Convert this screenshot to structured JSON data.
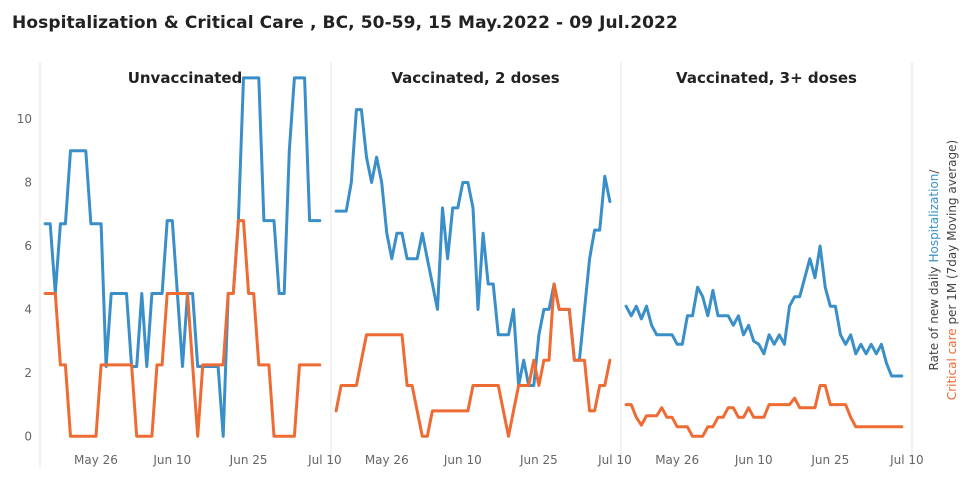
{
  "title": "Hospitalization & Critical Care , BC, 50-59, 15 May.2022 - 09 Jul.2022",
  "y_axis_label": {
    "line1_prefix": "Rate of new daily ",
    "line1_colored": "Hospitalization",
    "line1_suffix": "/",
    "line2_colored": "Critical care",
    "line2_suffix": " per 1M (7day Moving average)"
  },
  "colors": {
    "hospitalization": "#3a8fc9",
    "critical_care": "#ee6b33"
  },
  "chart_data": {
    "type": "line",
    "ylim": [
      -1,
      11.8
    ],
    "yticks": [
      0,
      2,
      4,
      6,
      8,
      10
    ],
    "xlim": [
      0,
      57
    ],
    "xtick_positions": [
      11,
      26,
      41,
      56
    ],
    "xtick_labels": [
      "May 26",
      "Jun 10",
      "Jun 25",
      "Jul 10"
    ],
    "grid": false,
    "panels": [
      {
        "title": "Unvaccinated",
        "series": [
          {
            "name": "Hospitalization",
            "x": [
              1,
              2,
              3,
              4,
              5,
              6,
              7,
              8,
              9,
              10,
              11,
              12,
              13,
              14,
              15,
              16,
              17,
              18,
              19,
              20,
              21,
              22,
              23,
              24,
              25,
              26,
              27,
              28,
              29,
              30,
              31,
              32,
              33,
              34,
              35,
              36,
              37,
              38,
              39,
              40,
              41,
              42,
              43,
              44,
              45,
              46,
              47,
              48,
              49,
              50,
              51,
              52,
              53,
              54,
              55
            ],
            "y": [
              6.7,
              6.7,
              4.5,
              6.7,
              6.7,
              9.0,
              9.0,
              9.0,
              9.0,
              6.7,
              6.7,
              6.7,
              2.2,
              4.5,
              4.5,
              4.5,
              4.5,
              2.2,
              2.2,
              4.5,
              2.2,
              4.5,
              4.5,
              4.5,
              6.8,
              6.8,
              4.5,
              2.2,
              4.5,
              4.5,
              2.2,
              2.2,
              2.2,
              2.2,
              2.2,
              0.0,
              4.5,
              4.5,
              6.8,
              11.3,
              11.3,
              11.3,
              11.3,
              6.8,
              6.8,
              6.8,
              4.5,
              4.5,
              9.0,
              11.3,
              11.3,
              11.3,
              6.8,
              6.8,
              6.8
            ]
          },
          {
            "name": "Critical care",
            "x": [
              1,
              2,
              3,
              4,
              5,
              6,
              7,
              8,
              9,
              10,
              11,
              12,
              13,
              14,
              15,
              16,
              17,
              18,
              19,
              20,
              21,
              22,
              23,
              24,
              25,
              26,
              27,
              28,
              29,
              30,
              31,
              32,
              33,
              34,
              35,
              36,
              37,
              38,
              39,
              40,
              41,
              42,
              43,
              44,
              45,
              46,
              47,
              48,
              49,
              50,
              51,
              52,
              53,
              54,
              55
            ],
            "y": [
              4.5,
              4.5,
              4.5,
              2.25,
              2.25,
              0,
              0,
              0,
              0,
              0,
              0,
              2.25,
              2.25,
              2.25,
              2.25,
              2.25,
              2.25,
              2.25,
              0,
              0,
              0,
              0,
              2.25,
              2.25,
              4.5,
              4.5,
              4.5,
              4.5,
              4.5,
              2.25,
              0,
              2.25,
              2.25,
              2.25,
              2.25,
              2.25,
              4.5,
              4.5,
              6.8,
              6.8,
              4.5,
              4.5,
              2.25,
              2.25,
              2.25,
              0,
              0,
              0,
              0,
              0,
              2.25,
              2.25,
              2.25,
              2.25,
              2.25
            ]
          }
        ]
      },
      {
        "title": "Vaccinated, 2 doses",
        "series": [
          {
            "name": "Hospitalization",
            "x": [
              1,
              2,
              3,
              4,
              5,
              6,
              7,
              8,
              9,
              10,
              11,
              12,
              13,
              14,
              15,
              16,
              17,
              18,
              19,
              20,
              21,
              22,
              23,
              24,
              25,
              26,
              27,
              28,
              29,
              30,
              31,
              32,
              33,
              34,
              35,
              36,
              37,
              38,
              39,
              40,
              41,
              42,
              43,
              44,
              45,
              46,
              47,
              48,
              49,
              50,
              51,
              52,
              53,
              54,
              55
            ],
            "y": [
              7.1,
              7.1,
              7.1,
              8.0,
              10.3,
              10.3,
              8.8,
              8.0,
              8.8,
              8.0,
              6.4,
              5.6,
              6.4,
              6.4,
              5.6,
              5.6,
              5.6,
              6.4,
              5.6,
              4.8,
              4.0,
              7.2,
              5.6,
              7.2,
              7.2,
              8.0,
              8.0,
              7.2,
              4.0,
              6.4,
              4.8,
              4.8,
              3.2,
              3.2,
              3.2,
              4.0,
              1.6,
              2.4,
              1.6,
              1.6,
              3.2,
              4.0,
              4.0,
              4.8,
              4.0,
              4.0,
              4.0,
              2.4,
              2.4,
              4.0,
              5.6,
              6.5,
              6.5,
              8.2,
              7.4
            ]
          },
          {
            "name": "Critical care",
            "x": [
              1,
              2,
              3,
              4,
              5,
              6,
              7,
              8,
              9,
              10,
              11,
              12,
              13,
              14,
              15,
              16,
              17,
              18,
              19,
              20,
              21,
              22,
              23,
              24,
              25,
              26,
              27,
              28,
              29,
              30,
              31,
              32,
              33,
              34,
              35,
              36,
              37,
              38,
              39,
              40,
              41,
              42,
              43,
              44,
              45,
              46,
              47,
              48,
              49,
              50,
              51,
              52,
              53,
              54,
              55
            ],
            "y": [
              0.8,
              1.6,
              1.6,
              1.6,
              1.6,
              2.4,
              3.2,
              3.2,
              3.2,
              3.2,
              3.2,
              3.2,
              3.2,
              3.2,
              1.6,
              1.6,
              0.8,
              0,
              0,
              0.8,
              0.8,
              0.8,
              0.8,
              0.8,
              0.8,
              0.8,
              0.8,
              1.6,
              1.6,
              1.6,
              1.6,
              1.6,
              1.6,
              0.8,
              0,
              0.8,
              1.6,
              1.6,
              1.6,
              2.4,
              1.6,
              2.4,
              2.4,
              4.8,
              4.0,
              4.0,
              4.0,
              2.4,
              2.4,
              2.4,
              0.8,
              0.8,
              1.6,
              1.6,
              2.4
            ]
          }
        ]
      },
      {
        "title": "Vaccinated, 3+ doses",
        "series": [
          {
            "name": "Hospitalization",
            "x": [
              1,
              2,
              3,
              4,
              5,
              6,
              7,
              8,
              9,
              10,
              11,
              12,
              13,
              14,
              15,
              16,
              17,
              18,
              19,
              20,
              21,
              22,
              23,
              24,
              25,
              26,
              27,
              28,
              29,
              30,
              31,
              32,
              33,
              34,
              35,
              36,
              37,
              38,
              39,
              40,
              41,
              42,
              43,
              44,
              45,
              46,
              47,
              48,
              49,
              50,
              51,
              52,
              53,
              54,
              55
            ],
            "y": [
              4.1,
              3.8,
              4.1,
              3.7,
              4.1,
              3.5,
              3.2,
              3.2,
              3.2,
              3.2,
              2.9,
              2.9,
              3.8,
              3.8,
              4.7,
              4.4,
              3.8,
              4.6,
              3.8,
              3.8,
              3.8,
              3.5,
              3.8,
              3.2,
              3.5,
              3.0,
              2.9,
              2.6,
              3.2,
              2.9,
              3.2,
              2.9,
              4.1,
              4.4,
              4.4,
              5.0,
              5.6,
              5.0,
              6.0,
              4.7,
              4.1,
              4.1,
              3.2,
              2.9,
              3.2,
              2.6,
              2.9,
              2.6,
              2.9,
              2.6,
              2.9,
              2.3,
              1.9,
              1.9,
              1.9
            ]
          },
          {
            "name": "Critical care",
            "x": [
              1,
              2,
              3,
              4,
              5,
              6,
              7,
              8,
              9,
              10,
              11,
              12,
              13,
              14,
              15,
              16,
              17,
              18,
              19,
              20,
              21,
              22,
              23,
              24,
              25,
              26,
              27,
              28,
              29,
              30,
              31,
              32,
              33,
              34,
              35,
              36,
              37,
              38,
              39,
              40,
              41,
              42,
              43,
              44,
              45,
              46,
              47,
              48,
              49,
              50,
              51,
              52,
              53,
              54,
              55
            ],
            "y": [
              1.0,
              1.0,
              0.6,
              0.35,
              0.65,
              0.65,
              0.65,
              0.9,
              0.6,
              0.6,
              0.3,
              0.3,
              0.3,
              0,
              0,
              0,
              0.3,
              0.3,
              0.6,
              0.6,
              0.9,
              0.9,
              0.6,
              0.6,
              0.9,
              0.6,
              0.6,
              0.6,
              1.0,
              1.0,
              1.0,
              1.0,
              1.0,
              1.2,
              0.9,
              0.9,
              0.9,
              0.9,
              1.6,
              1.6,
              1.0,
              1.0,
              1.0,
              1.0,
              0.6,
              0.3,
              0.3,
              0.3,
              0.3,
              0.3,
              0.3,
              0.3,
              0.3,
              0.3,
              0.3
            ]
          }
        ]
      }
    ]
  }
}
